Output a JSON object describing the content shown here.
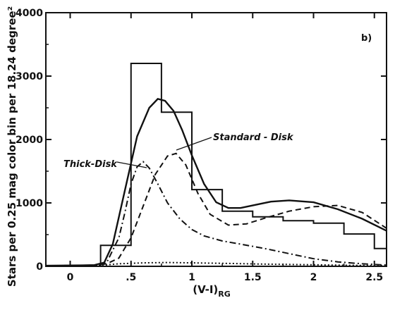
{
  "chart_data": {
    "type": "line",
    "panel_label": "b)",
    "xlabel": "(V-I)",
    "xlabel_sub": "RG",
    "ylabel": "Stars per 0.25 mag color bin per 18.24 degree²",
    "xlim": [
      -0.2,
      2.6
    ],
    "ylim": [
      0,
      4000
    ],
    "x_ticks": [
      0,
      0.5,
      1.0,
      1.5,
      2.0,
      2.5
    ],
    "x_tick_labels": [
      "0",
      ".5",
      "1",
      "1.5",
      "2",
      "2.5"
    ],
    "y_ticks": [
      0,
      1000,
      2000,
      3000,
      4000
    ],
    "y_tick_labels": [
      "0",
      "1000",
      "2000",
      "3000",
      "4000"
    ],
    "histogram": {
      "bin_edges": [
        0.25,
        0.5,
        0.75,
        1.0,
        1.25,
        1.5,
        1.75,
        2.0,
        2.25,
        2.5,
        2.6
      ],
      "values": [
        330,
        3200,
        2430,
        1210,
        870,
        780,
        720,
        680,
        510,
        280
      ]
    },
    "series": [
      {
        "style": "solid",
        "x": [
          -0.2,
          0.1,
          0.2,
          0.28,
          0.35,
          0.45,
          0.55,
          0.65,
          0.72,
          0.78,
          0.85,
          0.92,
          1.0,
          1.1,
          1.2,
          1.3,
          1.4,
          1.5,
          1.65,
          1.8,
          2.0,
          2.2,
          2.4,
          2.6
        ],
        "y": [
          10,
          15,
          20,
          60,
          350,
          1200,
          2050,
          2500,
          2640,
          2610,
          2450,
          2150,
          1750,
          1300,
          1010,
          920,
          920,
          960,
          1020,
          1040,
          1010,
          900,
          750,
          560
        ]
      },
      {
        "style": "dashed",
        "annotation": "Standard - Disk",
        "x": [
          -0.2,
          0.2,
          0.3,
          0.4,
          0.5,
          0.6,
          0.7,
          0.8,
          0.87,
          0.95,
          1.05,
          1.15,
          1.3,
          1.45,
          1.6,
          1.8,
          2.0,
          2.2,
          2.4,
          2.6
        ],
        "y": [
          10,
          15,
          40,
          130,
          450,
          950,
          1450,
          1740,
          1780,
          1600,
          1150,
          820,
          650,
          670,
          760,
          870,
          940,
          960,
          850,
          600
        ]
      },
      {
        "style": "dash-dot",
        "annotation": "Thick-Disk",
        "x": [
          -0.2,
          0.2,
          0.3,
          0.4,
          0.45,
          0.5,
          0.55,
          0.6,
          0.65,
          0.72,
          0.8,
          0.9,
          1.0,
          1.1,
          1.25,
          1.4,
          1.6,
          1.8,
          2.0,
          2.2,
          2.4,
          2.6
        ],
        "y": [
          5,
          10,
          60,
          450,
          850,
          1300,
          1570,
          1650,
          1550,
          1300,
          1000,
          750,
          580,
          480,
          400,
          350,
          280,
          200,
          120,
          70,
          40,
          20
        ]
      },
      {
        "style": "dotted",
        "x": [
          -0.2,
          0.2,
          0.4,
          0.6,
          0.8,
          1.0,
          1.3,
          1.6,
          2.0,
          2.3,
          2.6
        ],
        "y": [
          5,
          8,
          40,
          55,
          60,
          55,
          45,
          35,
          25,
          15,
          10
        ]
      }
    ]
  }
}
